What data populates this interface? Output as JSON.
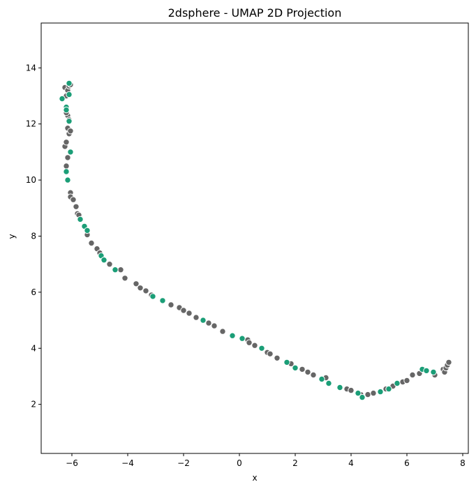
{
  "chart_data": {
    "type": "scatter",
    "title": "2dsphere - UMAP 2D Projection",
    "xlabel": "x",
    "ylabel": "y",
    "xlim": [
      -7.1,
      8.2
    ],
    "ylim": [
      0.25,
      15.6
    ],
    "xticks": [
      -6,
      -4,
      -2,
      0,
      2,
      4,
      6,
      8
    ],
    "yticks": [
      2,
      4,
      6,
      8,
      10,
      12,
      14
    ],
    "xtick_labels": [
      "−6",
      "−4",
      "−2",
      "0",
      "2",
      "4",
      "6",
      "8"
    ],
    "ytick_labels": [
      "2",
      "4",
      "6",
      "8",
      "10",
      "12",
      "14"
    ],
    "grid": false,
    "legend": "none",
    "colors": {
      "green": "#1b9e77",
      "gray": "#666666",
      "edge": "#ffffff"
    },
    "series": [
      {
        "color_key": "gray",
        "points": [
          [
            -6.25,
            13.3
          ],
          [
            -6.15,
            13.2
          ],
          [
            -6.1,
            13.35
          ],
          [
            -6.05,
            13.4
          ],
          [
            -6.2,
            13.0
          ],
          [
            -6.15,
            12.3
          ],
          [
            -6.2,
            12.4
          ],
          [
            -6.1,
            12.15
          ],
          [
            -6.15,
            11.85
          ],
          [
            -6.1,
            11.65
          ],
          [
            -6.05,
            11.75
          ],
          [
            -6.25,
            11.2
          ],
          [
            -6.2,
            11.35
          ],
          [
            -6.15,
            10.8
          ],
          [
            -6.2,
            10.5
          ],
          [
            -6.05,
            9.55
          ],
          [
            -6.0,
            9.35
          ],
          [
            -6.05,
            9.4
          ],
          [
            -5.95,
            9.3
          ],
          [
            -5.85,
            9.05
          ],
          [
            -5.8,
            8.8
          ],
          [
            -5.75,
            8.75
          ],
          [
            -5.45,
            8.05
          ],
          [
            -5.3,
            7.75
          ],
          [
            -5.1,
            7.55
          ],
          [
            -5.0,
            7.4
          ],
          [
            -4.65,
            7.0
          ],
          [
            -4.25,
            6.8
          ],
          [
            -4.1,
            6.5
          ],
          [
            -3.7,
            6.3
          ],
          [
            -3.55,
            6.15
          ],
          [
            -3.35,
            6.05
          ],
          [
            -3.15,
            5.9
          ],
          [
            -2.45,
            5.55
          ],
          [
            -2.15,
            5.45
          ],
          [
            -2.0,
            5.35
          ],
          [
            -1.8,
            5.25
          ],
          [
            -1.55,
            5.1
          ],
          [
            -1.1,
            4.9
          ],
          [
            -0.9,
            4.8
          ],
          [
            -0.6,
            4.6
          ],
          [
            0.3,
            4.3
          ],
          [
            0.35,
            4.2
          ],
          [
            0.55,
            4.1
          ],
          [
            1.0,
            3.85
          ],
          [
            1.1,
            3.8
          ],
          [
            1.35,
            3.65
          ],
          [
            1.85,
            3.45
          ],
          [
            2.25,
            3.25
          ],
          [
            2.45,
            3.15
          ],
          [
            2.65,
            3.05
          ],
          [
            3.1,
            2.95
          ],
          [
            3.85,
            2.55
          ],
          [
            4.0,
            2.5
          ],
          [
            4.35,
            2.35
          ],
          [
            4.6,
            2.35
          ],
          [
            4.8,
            2.4
          ],
          [
            5.25,
            2.55
          ],
          [
            5.5,
            2.65
          ],
          [
            5.85,
            2.8
          ],
          [
            6.0,
            2.85
          ],
          [
            6.2,
            3.05
          ],
          [
            6.45,
            3.1
          ],
          [
            7.0,
            3.05
          ],
          [
            7.3,
            3.25
          ],
          [
            7.35,
            3.15
          ],
          [
            7.4,
            3.3
          ],
          [
            7.45,
            3.4
          ],
          [
            7.5,
            3.5
          ]
        ]
      },
      {
        "color_key": "green",
        "points": [
          [
            -6.1,
            13.45
          ],
          [
            -6.35,
            12.9
          ],
          [
            -6.1,
            13.05
          ],
          [
            -6.2,
            12.6
          ],
          [
            -6.2,
            12.5
          ],
          [
            -6.1,
            12.1
          ],
          [
            -6.05,
            11.0
          ],
          [
            -6.2,
            10.3
          ],
          [
            -6.15,
            10.0
          ],
          [
            -5.7,
            8.6
          ],
          [
            -5.55,
            8.35
          ],
          [
            -5.45,
            8.2
          ],
          [
            -4.95,
            7.3
          ],
          [
            -4.85,
            7.15
          ],
          [
            -4.45,
            6.8
          ],
          [
            -3.1,
            5.85
          ],
          [
            -2.75,
            5.7
          ],
          [
            -1.3,
            5.0
          ],
          [
            -0.25,
            4.45
          ],
          [
            0.1,
            4.35
          ],
          [
            0.8,
            4.0
          ],
          [
            1.7,
            3.5
          ],
          [
            2.0,
            3.3
          ],
          [
            2.95,
            2.9
          ],
          [
            3.2,
            2.75
          ],
          [
            3.6,
            2.6
          ],
          [
            4.25,
            2.4
          ],
          [
            4.4,
            2.25
          ],
          [
            5.05,
            2.45
          ],
          [
            5.35,
            2.55
          ],
          [
            5.65,
            2.75
          ],
          [
            6.55,
            3.25
          ],
          [
            6.7,
            3.2
          ],
          [
            6.95,
            3.15
          ]
        ]
      }
    ]
  }
}
